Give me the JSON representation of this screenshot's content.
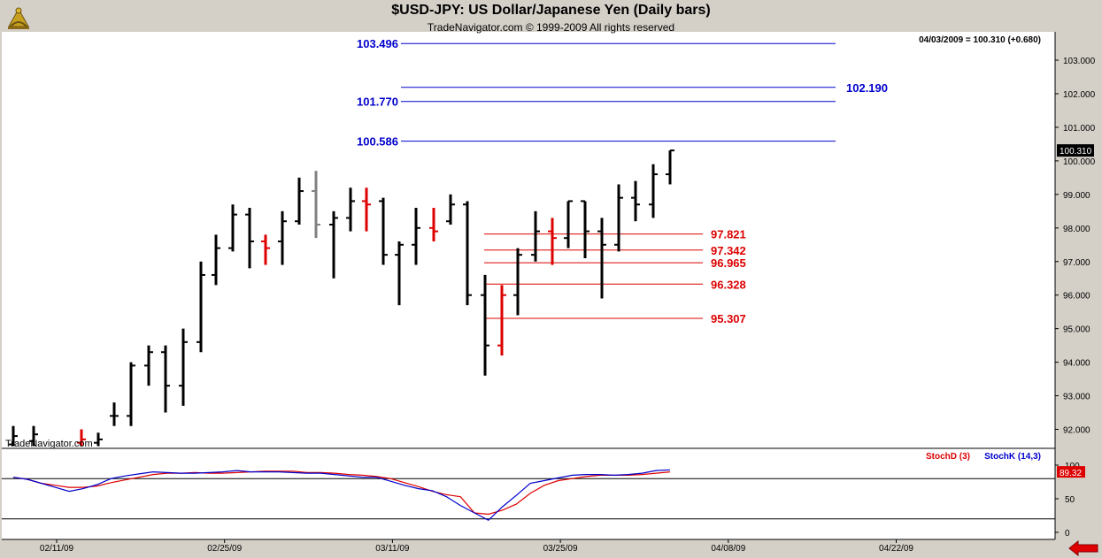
{
  "header": {
    "title": "$USD-JPY:  US Dollar/Japanese Yen  (Daily bars)",
    "copyright": "TradeNavigator.com © 1999-2009 All rights reserved",
    "quote": "04/03/2009 = 100.310 (+0.680)",
    "watermark": "TradeNavigator.com"
  },
  "colors": {
    "background": "#ffffff",
    "frame": "#d4d0c8",
    "bar_up": "#000000",
    "bar_highlight": "#dd0000",
    "bar_gray": "#808080",
    "resistance": "#0000cc",
    "support": "#dd0000",
    "stoch_d": "#dd0000",
    "stoch_k": "#0000cc"
  },
  "icons": {
    "logo": "sextant-logo-icon",
    "nav": "red-left-arrow-icon"
  },
  "chart_data": [
    {
      "type": "ohlc",
      "title": "$USD-JPY:  US Dollar/Japanese Yen  (Daily bars)",
      "ylim": [
        91.5,
        103.7
      ],
      "yticks": [
        "92.000",
        "93.000",
        "94.000",
        "95.000",
        "96.000",
        "97.000",
        "98.000",
        "99.000",
        "100.000",
        "101.000",
        "102.000",
        "103.000"
      ],
      "xticks": [
        "02/11/09",
        "02/25/09",
        "03/11/09",
        "03/25/09",
        "04/08/09",
        "04/22/09"
      ],
      "last_price": "100.310",
      "bars": [
        {
          "date": "02/04/09",
          "open": 91.55,
          "high": 92.1,
          "low": 91.5,
          "close": 91.8,
          "color": "black"
        },
        {
          "date": "02/09/09",
          "open": 91.65,
          "high": 92.1,
          "low": 91.5,
          "close": 91.85,
          "color": "black"
        },
        {
          "date": "02/10/09",
          "open": 91.6,
          "high": 92.0,
          "low": 91.5,
          "close": 91.7,
          "color": "red"
        },
        {
          "date": "02/11/09",
          "open": 91.6,
          "high": 91.9,
          "low": 91.5,
          "close": 91.7,
          "color": "black"
        },
        {
          "date": "02/12/09",
          "open": 92.4,
          "high": 92.8,
          "low": 92.1,
          "close": 92.4,
          "color": "black"
        },
        {
          "date": "02/13/09",
          "open": 92.4,
          "high": 94.0,
          "low": 92.1,
          "close": 93.9,
          "color": "black"
        },
        {
          "date": "02/16/09",
          "open": 93.9,
          "high": 94.5,
          "low": 93.3,
          "close": 94.3,
          "color": "black"
        },
        {
          "date": "02/17/09",
          "open": 94.3,
          "high": 94.5,
          "low": 92.5,
          "close": 93.3,
          "color": "black"
        },
        {
          "date": "02/18/09",
          "open": 93.3,
          "high": 95.0,
          "low": 92.7,
          "close": 94.6,
          "color": "black"
        },
        {
          "date": "02/19/09",
          "open": 94.6,
          "high": 97.0,
          "low": 94.3,
          "close": 96.6,
          "color": "black"
        },
        {
          "date": "02/20/09",
          "open": 96.6,
          "high": 97.8,
          "low": 96.3,
          "close": 97.4,
          "color": "black"
        },
        {
          "date": "02/23/09",
          "open": 97.4,
          "high": 98.7,
          "low": 97.3,
          "close": 98.4,
          "color": "black"
        },
        {
          "date": "02/24/09",
          "open": 98.4,
          "high": 98.6,
          "low": 96.8,
          "close": 97.6,
          "color": "black"
        },
        {
          "date": "02/25/09",
          "open": 97.6,
          "high": 97.8,
          "low": 96.9,
          "close": 97.4,
          "color": "red"
        },
        {
          "date": "02/26/09",
          "open": 97.6,
          "high": 98.5,
          "low": 96.9,
          "close": 98.2,
          "color": "black"
        },
        {
          "date": "02/27/09",
          "open": 98.2,
          "high": 99.5,
          "low": 98.1,
          "close": 99.1,
          "color": "black"
        },
        {
          "date": "03/02/09",
          "open": 99.1,
          "high": 99.7,
          "low": 97.7,
          "close": 98.1,
          "color": "gray"
        },
        {
          "date": "03/03/09",
          "open": 98.1,
          "high": 98.5,
          "low": 96.5,
          "close": 98.3,
          "color": "black"
        },
        {
          "date": "03/04/09",
          "open": 98.3,
          "high": 99.2,
          "low": 97.9,
          "close": 98.8,
          "color": "black"
        },
        {
          "date": "03/05/09",
          "open": 98.8,
          "high": 99.2,
          "low": 97.9,
          "close": 98.7,
          "color": "red"
        },
        {
          "date": "03/06/09",
          "open": 98.8,
          "high": 98.9,
          "low": 96.9,
          "close": 97.2,
          "color": "black"
        },
        {
          "date": "03/09/09",
          "open": 97.2,
          "high": 97.6,
          "low": 95.7,
          "close": 97.5,
          "color": "black"
        },
        {
          "date": "03/10/09",
          "open": 97.5,
          "high": 98.6,
          "low": 96.9,
          "close": 98.0,
          "color": "black"
        },
        {
          "date": "03/11/09",
          "open": 98.0,
          "high": 98.6,
          "low": 97.6,
          "close": 97.9,
          "color": "red"
        },
        {
          "date": "03/12/09",
          "open": 98.2,
          "high": 99.0,
          "low": 98.1,
          "close": 98.7,
          "color": "black"
        },
        {
          "date": "03/13/09",
          "open": 98.7,
          "high": 98.8,
          "low": 95.7,
          "close": 96.0,
          "color": "black"
        },
        {
          "date": "03/16/09",
          "open": 96.0,
          "high": 96.6,
          "low": 93.6,
          "close": 94.5,
          "color": "black"
        },
        {
          "date": "03/17/09",
          "open": 94.5,
          "high": 96.3,
          "low": 94.2,
          "close": 96.0,
          "color": "red"
        },
        {
          "date": "03/18/09",
          "open": 96.0,
          "high": 97.4,
          "low": 95.4,
          "close": 97.2,
          "color": "black"
        },
        {
          "date": "03/19/09",
          "open": 97.2,
          "high": 98.5,
          "low": 97.0,
          "close": 97.9,
          "color": "black"
        },
        {
          "date": "03/20/09",
          "open": 97.9,
          "high": 98.3,
          "low": 96.9,
          "close": 97.7,
          "color": "red"
        },
        {
          "date": "03/23/09",
          "open": 97.7,
          "high": 98.8,
          "low": 97.4,
          "close": 98.8,
          "color": "black"
        },
        {
          "date": "03/24/09",
          "open": 98.8,
          "high": 98.8,
          "low": 97.1,
          "close": 97.9,
          "color": "black"
        },
        {
          "date": "03/25/09",
          "open": 97.9,
          "high": 98.3,
          "low": 95.9,
          "close": 97.5,
          "color": "black"
        },
        {
          "date": "03/26/09",
          "open": 97.5,
          "high": 99.3,
          "low": 97.3,
          "close": 98.9,
          "color": "black"
        },
        {
          "date": "03/27/09",
          "open": 98.9,
          "high": 99.4,
          "low": 98.2,
          "close": 98.7,
          "color": "black"
        },
        {
          "date": "03/30/09",
          "open": 98.7,
          "high": 99.9,
          "low": 98.3,
          "close": 99.6,
          "color": "black"
        },
        {
          "date": "04/03/09",
          "open": 99.6,
          "high": 100.31,
          "low": 99.3,
          "close": 100.31,
          "color": "black"
        }
      ],
      "resistance_levels": [
        "103.496",
        "102.190",
        "101.770",
        "100.586"
      ],
      "support_levels": [
        "97.821",
        "97.342",
        "96.965",
        "96.328",
        "95.307"
      ]
    },
    {
      "type": "line",
      "title": "Stochastics",
      "ylim": [
        0,
        100
      ],
      "yticks": [
        "0",
        "50",
        "100"
      ],
      "reference_lines": [
        20,
        80
      ],
      "last_value": "89.32",
      "series": [
        {
          "name": "StochD (3)",
          "color": "#dd0000",
          "values": [
            82,
            79,
            73,
            70,
            67,
            67,
            69,
            74,
            78,
            82,
            86,
            88,
            88,
            89,
            88,
            88,
            89,
            90,
            91,
            91,
            91,
            89,
            89,
            88,
            86,
            85,
            83,
            80,
            74,
            68,
            61,
            56,
            53,
            29,
            27,
            33,
            42,
            58,
            70,
            77,
            80,
            83,
            85,
            85,
            85,
            86,
            88,
            90
          ]
        },
        {
          "name": "StochK (14,3)",
          "color": "#0000cc",
          "values": [
            82,
            79,
            73,
            67,
            61,
            65,
            71,
            80,
            84,
            87,
            90,
            89,
            88,
            88,
            89,
            90,
            92,
            90,
            90,
            90,
            89,
            88,
            88,
            86,
            84,
            82,
            82,
            76,
            70,
            65,
            62,
            53,
            40,
            29,
            18,
            38,
            55,
            73,
            77,
            81,
            85,
            86,
            86,
            85,
            86,
            88,
            92,
            93
          ]
        }
      ]
    }
  ]
}
